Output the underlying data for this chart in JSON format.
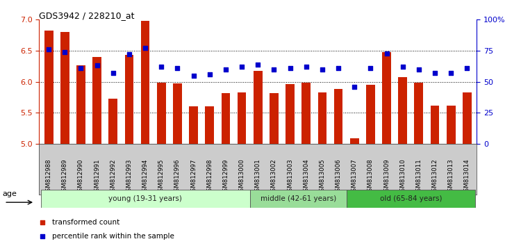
{
  "title": "GDS3942 / 228210_at",
  "samples": [
    "GSM812988",
    "GSM812989",
    "GSM812990",
    "GSM812991",
    "GSM812992",
    "GSM812993",
    "GSM812994",
    "GSM812995",
    "GSM812996",
    "GSM812997",
    "GSM812998",
    "GSM812999",
    "GSM813000",
    "GSM813001",
    "GSM813002",
    "GSM813003",
    "GSM813004",
    "GSM813005",
    "GSM813006",
    "GSM813007",
    "GSM813008",
    "GSM813009",
    "GSM813010",
    "GSM813011",
    "GSM813012",
    "GSM813013",
    "GSM813014"
  ],
  "bar_values": [
    6.82,
    6.8,
    6.27,
    6.4,
    5.73,
    6.43,
    6.98,
    5.98,
    5.97,
    5.6,
    5.6,
    5.82,
    5.83,
    6.18,
    5.82,
    5.96,
    5.99,
    5.83,
    5.88,
    5.09,
    5.95,
    6.48,
    6.08,
    5.98,
    5.62,
    5.62,
    5.83
  ],
  "dot_values": [
    76,
    74,
    61,
    63,
    57,
    72,
    77,
    62,
    61,
    55,
    56,
    60,
    62,
    64,
    60,
    61,
    62,
    60,
    61,
    46,
    61,
    73,
    62,
    60,
    57,
    57,
    61
  ],
  "bar_color": "#cc2200",
  "dot_color": "#0000cc",
  "ylim_left": [
    5.0,
    7.0
  ],
  "ylim_right": [
    0,
    100
  ],
  "yticks_left": [
    5.0,
    5.5,
    6.0,
    6.5,
    7.0
  ],
  "yticks_right": [
    0,
    25,
    50,
    75,
    100
  ],
  "ytick_labels_right": [
    "0",
    "25",
    "50",
    "75",
    "100%"
  ],
  "hlines": [
    5.5,
    6.0,
    6.5
  ],
  "groups": [
    {
      "label": "young (19-31 years)",
      "start": 0,
      "end": 13,
      "color": "#ccffcc"
    },
    {
      "label": "middle (42-61 years)",
      "start": 13,
      "end": 19,
      "color": "#99dd99"
    },
    {
      "label": "old (65-84 years)",
      "start": 19,
      "end": 27,
      "color": "#44bb44"
    }
  ],
  "legend_items": [
    {
      "label": "transformed count",
      "color": "#cc2200"
    },
    {
      "label": "percentile rank within the sample",
      "color": "#0000cc"
    }
  ],
  "tick_area_color": "#cccccc",
  "age_group_color": "#dddddd"
}
